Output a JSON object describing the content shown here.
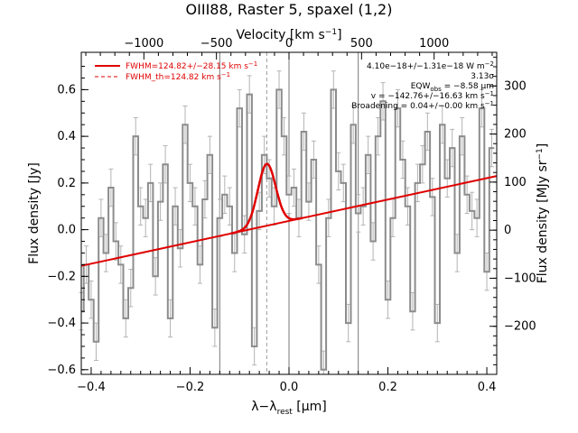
{
  "chart_data": {
    "type": "line",
    "title": "OIII88, Raster 5, spaxel (1,2)",
    "xlabel": "λ−λ",
    "xlabel_sub": "rest",
    "xlabel_unit": " [μm]",
    "ylabel_left": "Flux density [Jy]",
    "ylabel_right": "Flux density [MJy sr",
    "ylabel_right_sup": "−1",
    "ylabel_right_end": "]",
    "top_axis_label": "Velocity [km s",
    "top_axis_sup": "−1",
    "top_axis_end": "]",
    "xlim": [
      -0.42,
      0.42
    ],
    "ylim": [
      -0.62,
      0.76
    ],
    "right_ylim": [
      -300,
      370
    ],
    "velocity_per_um": 3408,
    "x_ticks": [
      -0.4,
      -0.2,
      0.0,
      0.2,
      0.4
    ],
    "x_tick_labels": [
      "−0.4",
      "−0.2",
      "0.0",
      "0.2",
      "0.4"
    ],
    "y_ticks": [
      -0.6,
      -0.4,
      -0.2,
      0.0,
      0.2,
      0.4,
      0.6
    ],
    "y_tick_labels": [
      "−0.6",
      "−0.4",
      "−0.2",
      "0.0",
      "0.2",
      "0.4",
      "0.6"
    ],
    "right_ticks": [
      -200,
      -100,
      0,
      100,
      200,
      300
    ],
    "right_tick_labels": [
      "−200",
      "−100",
      "0",
      "100",
      "200",
      "300"
    ],
    "top_ticks": [
      -1000,
      -500,
      0,
      500,
      1000
    ],
    "top_tick_labels": [
      "−1000",
      "−500",
      "0",
      "500",
      "1000"
    ],
    "vertical_lines": [
      -0.14,
      0.0,
      0.14
    ],
    "dashed_line": -0.045,
    "continuum": {
      "x": [
        -0.42,
        0.42
      ],
      "y": [
        -0.155,
        0.23
      ]
    },
    "line_fit": {
      "center": -0.045,
      "sigma": 0.018,
      "amplitude": 0.265
    },
    "spectrum": {
      "x": [
        -0.42,
        -0.41,
        -0.4,
        -0.39,
        -0.38,
        -0.37,
        -0.36,
        -0.35,
        -0.34,
        -0.33,
        -0.32,
        -0.31,
        -0.3,
        -0.29,
        -0.28,
        -0.27,
        -0.26,
        -0.25,
        -0.24,
        -0.23,
        -0.22,
        -0.21,
        -0.2,
        -0.19,
        -0.18,
        -0.17,
        -0.16,
        -0.15,
        -0.14,
        -0.13,
        -0.12,
        -0.11,
        -0.1,
        -0.09,
        -0.08,
        -0.07,
        -0.06,
        -0.05,
        -0.04,
        -0.03,
        -0.02,
        -0.01,
        0.0,
        0.01,
        0.02,
        0.03,
        0.04,
        0.05,
        0.06,
        0.07,
        0.08,
        0.09,
        0.1,
        0.11,
        0.12,
        0.13,
        0.14,
        0.15,
        0.16,
        0.17,
        0.18,
        0.19,
        0.2,
        0.21,
        0.22,
        0.23,
        0.24,
        0.25,
        0.26,
        0.27,
        0.28,
        0.29,
        0.3,
        0.31,
        0.32,
        0.33,
        0.34,
        0.35,
        0.36,
        0.37,
        0.38,
        0.39,
        0.4,
        0.41
      ],
      "y": [
        -0.35,
        -0.15,
        -0.3,
        -0.48,
        0.05,
        -0.1,
        0.18,
        -0.05,
        -0.15,
        -0.38,
        -0.25,
        0.4,
        0.1,
        0.05,
        0.2,
        -0.2,
        0.12,
        0.28,
        -0.38,
        0.1,
        -0.08,
        0.45,
        0.2,
        0.1,
        -0.15,
        0.13,
        0.32,
        -0.42,
        0.05,
        0.15,
        0.1,
        -0.1,
        0.52,
        -0.02,
        0.58,
        -0.5,
        0.08,
        0.32,
        0.22,
        0.1,
        0.6,
        0.4,
        0.15,
        0.18,
        0.05,
        0.42,
        0.12,
        0.3,
        -0.15,
        -0.6,
        0.05,
        0.6,
        0.25,
        0.2,
        -0.4,
        0.45,
        0.07,
        0.1,
        0.32,
        -0.05,
        0.4,
        0.55,
        -0.3,
        0.05,
        0.52,
        0.3,
        0.1,
        -0.35,
        0.2,
        0.28,
        0.42,
        0.14,
        -0.4,
        0.45,
        0.22,
        0.35,
        -0.1,
        0.4,
        0.15,
        0.08,
        0.05,
        0.52,
        -0.18,
        0.35
      ],
      "err": [
        0.08,
        0.08,
        0.08,
        0.08,
        0.08,
        0.08,
        0.08,
        0.08,
        0.08,
        0.08,
        0.08,
        0.08,
        0.08,
        0.08,
        0.08,
        0.08,
        0.08,
        0.08,
        0.08,
        0.08,
        0.08,
        0.08,
        0.08,
        0.08,
        0.08,
        0.08,
        0.08,
        0.08,
        0.08,
        0.08,
        0.08,
        0.08,
        0.08,
        0.08,
        0.08,
        0.08,
        0.08,
        0.08,
        0.08,
        0.08,
        0.08,
        0.08,
        0.08,
        0.08,
        0.08,
        0.08,
        0.08,
        0.08,
        0.08,
        0.08,
        0.08,
        0.08,
        0.08,
        0.08,
        0.08,
        0.08,
        0.08,
        0.08,
        0.08,
        0.08,
        0.08,
        0.08,
        0.08,
        0.08,
        0.08,
        0.08,
        0.08,
        0.08,
        0.08,
        0.08,
        0.08,
        0.08,
        0.08,
        0.08,
        0.08,
        0.08,
        0.08,
        0.08,
        0.08,
        0.08,
        0.08,
        0.08,
        0.08,
        0.08
      ]
    },
    "legend": [
      {
        "label": "FWHM=124.82+/−28.15 km s",
        "sup": "−1",
        "style": "solid",
        "color": "#e00000"
      },
      {
        "label": "FWHM_th=124.82 km s",
        "sup": "−1",
        "style": "dashed",
        "color": "#e00000"
      }
    ],
    "annotations": [
      {
        "parts": [
          {
            "t": "4.10e−18+/−1.31e−18 W m"
          },
          {
            "t": "−2",
            "sup": true
          }
        ]
      },
      {
        "parts": [
          {
            "t": "3.13σ"
          }
        ]
      },
      {
        "parts": [
          {
            "t": "EQW"
          },
          {
            "t": "obs",
            "sub": true
          },
          {
            "t": " = −8.58 μm"
          }
        ]
      },
      {
        "parts": [
          {
            "t": "v = −142.76+/−16.63 km s"
          },
          {
            "t": "−1",
            "sup": true
          }
        ]
      },
      {
        "parts": [
          {
            "t": "Broadening = 0.04+/−0.00 km s"
          },
          {
            "t": "−1",
            "sup": true
          }
        ]
      }
    ],
    "colors": {
      "spectrum": "#8c8c8c",
      "errorbar": "#b4b4b4",
      "fit": "#e00000",
      "vline": "#777777"
    }
  }
}
